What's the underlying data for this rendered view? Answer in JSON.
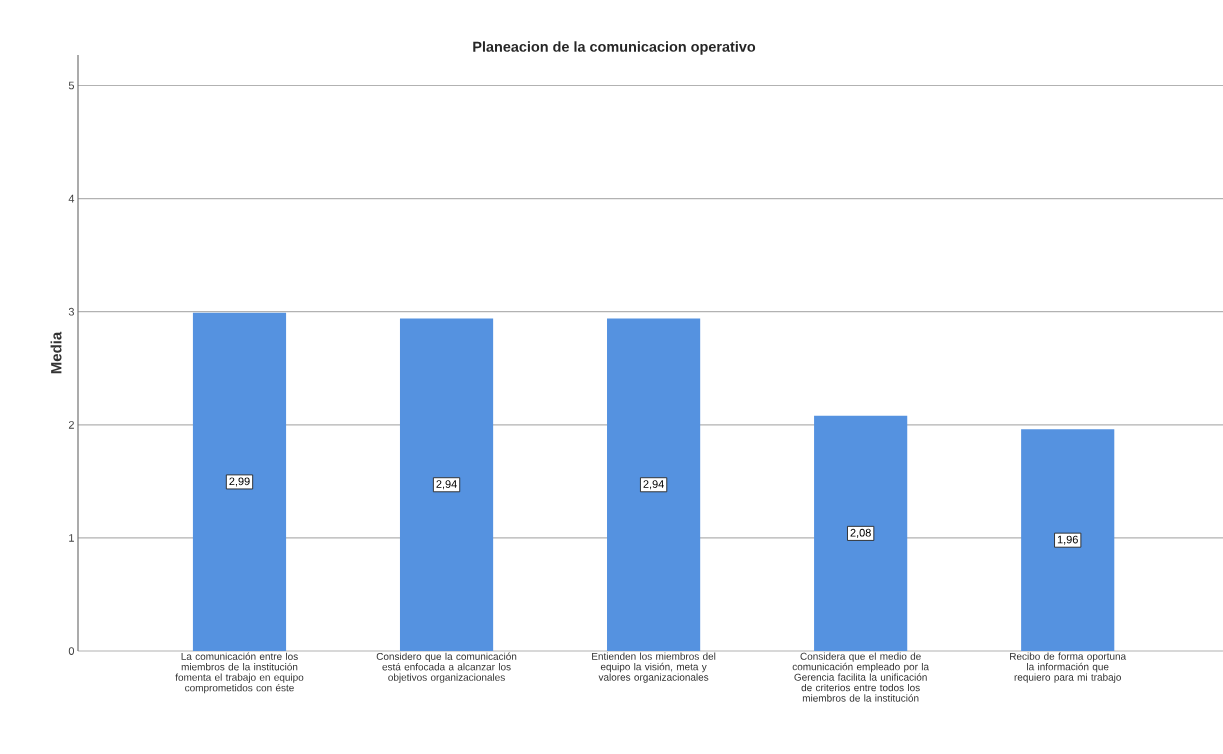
{
  "chart_data": {
    "type": "bar",
    "title": "Planeacion de la comunicacion operativo",
    "ylabel": "Media",
    "categories": [
      "La comunicación entre los miembros de la institución fomenta el trabajo en equipo comprometidos con éste",
      "Considero que la comunicación está enfocada a alcanzar los objetivos organizacionales",
      "Entienden los miembros del equipo la visión, meta y valores organizacionales",
      "Considera que el medio de comunicación empleado por la Gerencia facilita la unificación de criterios entre todos los miembros de la institución",
      "Recibo de forma oportuna la información que requiero para mi trabajo"
    ],
    "values": [
      2.99,
      2.94,
      2.94,
      2.08,
      1.96
    ],
    "color": "#5592e0",
    "value_labels": [
      "2,99",
      "2,94",
      "2,94",
      "2,08",
      "1,96"
    ],
    "ylim": [
      0,
      5.27
    ],
    "yticks": [
      0,
      1,
      2,
      3,
      4,
      5
    ],
    "grid": "y"
  }
}
